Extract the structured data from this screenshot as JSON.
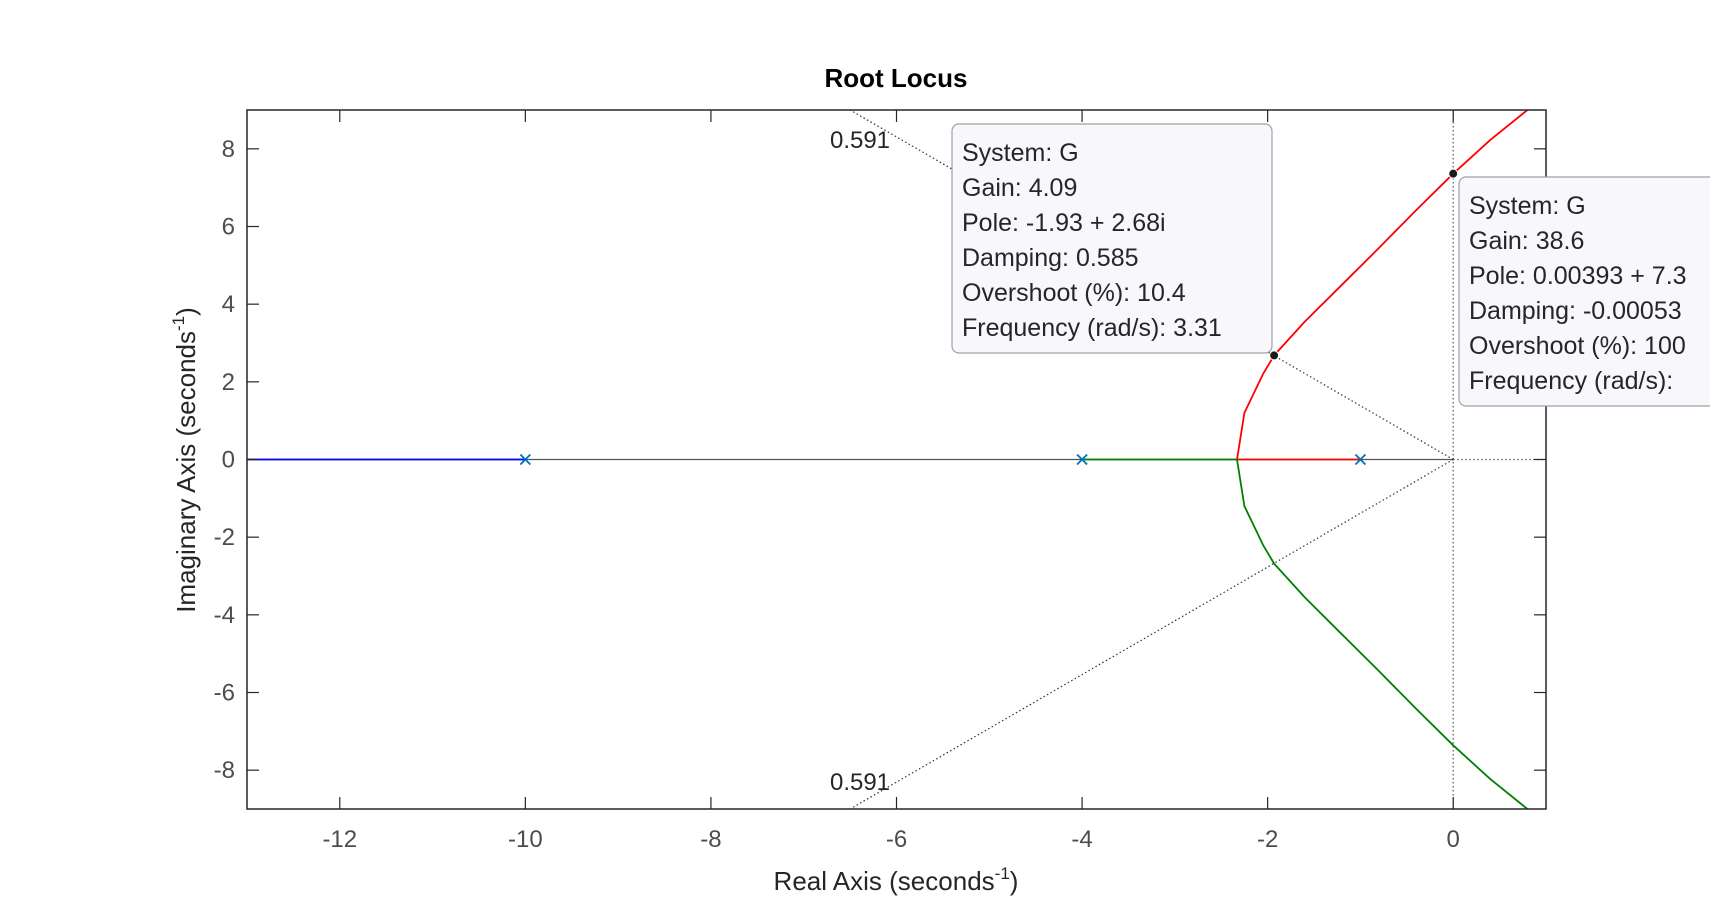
{
  "chart_data": {
    "type": "line",
    "title": "Root Locus",
    "xlabel": {
      "text": "Real Axis (seconds",
      "sup": "-1",
      "end": ")"
    },
    "ylabel": {
      "text": "Imaginary Axis (seconds",
      "sup": "-1",
      "end": ")"
    },
    "xlim": [
      -13,
      1
    ],
    "ylim": [
      -9,
      9
    ],
    "xticks": [
      -12,
      -10,
      -8,
      -6,
      -4,
      -2,
      0
    ],
    "yticks": [
      -8,
      -6,
      -4,
      -2,
      0,
      2,
      4,
      6,
      8
    ],
    "grid": false,
    "poles": [
      [
        -10,
        0
      ],
      [
        -4,
        0
      ],
      [
        -1,
        0
      ]
    ],
    "breakaway": [
      -2.33,
      0
    ],
    "series": [
      {
        "color": "#0000ff",
        "points": [
          [
            -10,
            0
          ],
          [
            -13,
            0
          ]
        ]
      },
      {
        "color": "#ff0000",
        "points": [
          [
            -1,
            0
          ],
          [
            -2.33,
            0
          ],
          [
            -2.25,
            1.2
          ],
          [
            -2.05,
            2.2
          ],
          [
            -1.93,
            2.68
          ],
          [
            -1.6,
            3.55
          ],
          [
            -1.2,
            4.5
          ],
          [
            -0.8,
            5.45
          ],
          [
            -0.4,
            6.42
          ],
          [
            0,
            7.36
          ],
          [
            0.4,
            8.23
          ],
          [
            0.8,
            9.1
          ]
        ]
      },
      {
        "color": "#008000",
        "points": [
          [
            -4,
            0
          ],
          [
            -2.33,
            0
          ],
          [
            -2.25,
            -1.2
          ],
          [
            -2.05,
            -2.2
          ],
          [
            -1.93,
            -2.68
          ],
          [
            -1.6,
            -3.55
          ],
          [
            -1.2,
            -4.5
          ],
          [
            -0.8,
            -5.45
          ],
          [
            -0.4,
            -6.42
          ],
          [
            0,
            -7.36
          ],
          [
            0.4,
            -8.23
          ],
          [
            0.8,
            -9.1
          ]
        ]
      }
    ],
    "damping_lines": [
      {
        "label": "0.591",
        "end": [
          -6.5,
          9.0
        ]
      },
      {
        "label": "0.591",
        "end": [
          -6.5,
          -9.0
        ]
      }
    ],
    "datatips": [
      {
        "point": [
          -1.93,
          2.68
        ],
        "lines": [
          "System: G",
          "Gain: 4.09",
          "Pole: -1.93 + 2.68i",
          "Damping: 0.585",
          "Overshoot (%): 10.4",
          "Frequency (rad/s): 3.31"
        ]
      },
      {
        "point": [
          0.0,
          7.36
        ],
        "lines": [
          "System: G",
          "Gain: 38.6",
          "Pole: 0.00393 + 7.3",
          "Damping: -0.00053",
          "Overshoot (%): 100",
          "Frequency (rad/s):"
        ]
      }
    ]
  }
}
